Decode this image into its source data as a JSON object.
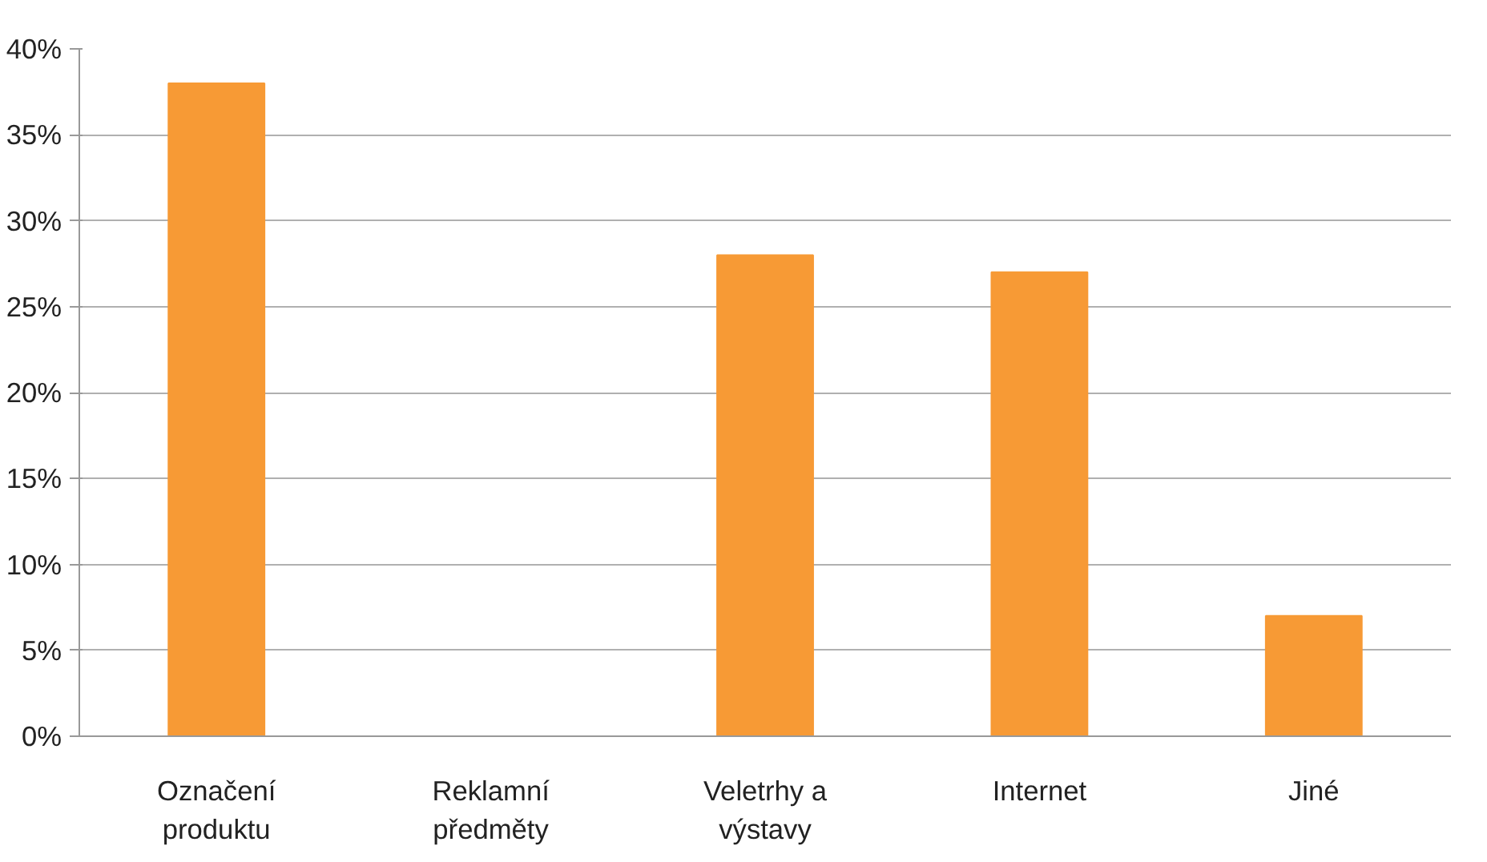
{
  "chart_data": {
    "type": "bar",
    "categories": [
      "Označení\nproduktu",
      "Reklamní\npředměty",
      "Veletrhy a\nvýstavy",
      "Internet",
      "Jiné"
    ],
    "values": [
      38,
      0,
      28,
      27,
      7
    ],
    "color": "#f79a35",
    "ylim": [
      0,
      40
    ],
    "yticks": [
      {
        "value": 0,
        "label": "0%"
      },
      {
        "value": 5,
        "label": "5%"
      },
      {
        "value": 10,
        "label": "10%"
      },
      {
        "value": 15,
        "label": "15%"
      },
      {
        "value": 20,
        "label": "20%"
      },
      {
        "value": 25,
        "label": "25%"
      },
      {
        "value": 30,
        "label": "30%"
      },
      {
        "value": 35,
        "label": "35%"
      },
      {
        "value": 40,
        "label": "40%"
      }
    ],
    "grid": "y"
  }
}
